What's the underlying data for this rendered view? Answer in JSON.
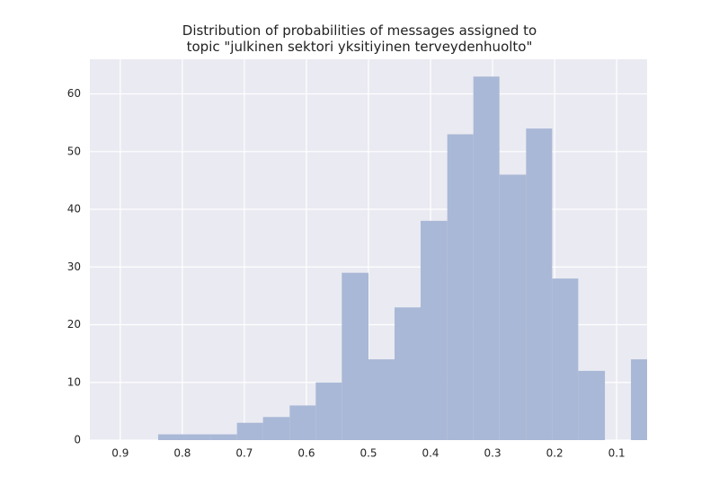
{
  "chart_data": {
    "type": "histogram",
    "title": "Distribution of probabilities of messages assigned to\ntopic \"julkinen sektori yksitiyinen terveydenhuolto\"",
    "bins": [
      0.839,
      0.797,
      0.754,
      0.712,
      0.67,
      0.627,
      0.585,
      0.543,
      0.5,
      0.458,
      0.416,
      0.373,
      0.331,
      0.289,
      0.246,
      0.204,
      0.162,
      0.119,
      0.077,
      0.035
    ],
    "values": [
      1,
      1,
      1,
      3,
      4,
      6,
      10,
      29,
      14,
      23,
      38,
      53,
      63,
      46,
      54,
      28,
      12,
      0,
      14
    ],
    "color": "#a9b8d6",
    "xlim": [
      0.949,
      0.051
    ],
    "xticks": [
      0.9,
      0.8,
      0.7,
      0.6,
      0.5,
      0.4,
      0.3,
      0.2,
      0.1
    ],
    "ylim": [
      0,
      66
    ],
    "yticks": [
      0,
      10,
      20,
      30,
      40,
      50,
      60
    ],
    "grid": true
  }
}
